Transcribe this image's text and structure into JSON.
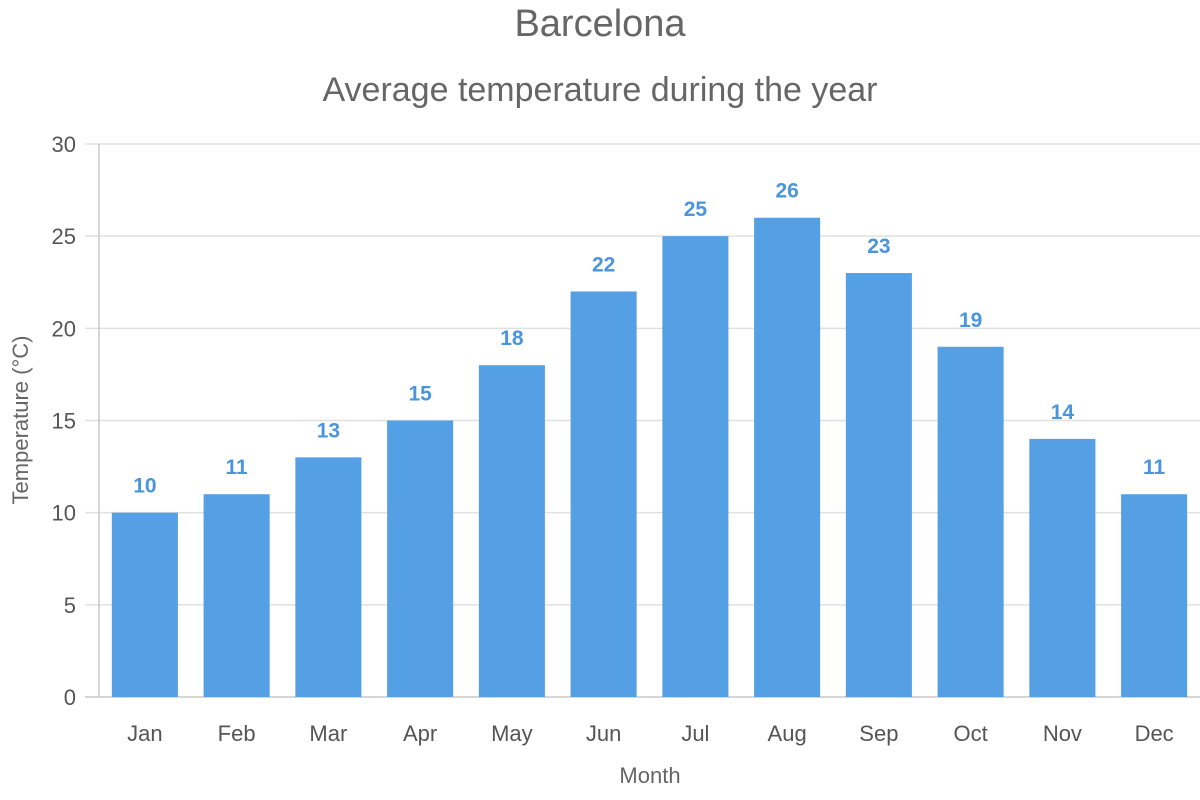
{
  "chart_data": {
    "type": "bar",
    "title": "Barcelona",
    "subtitle": "Average temperature during the year",
    "xlabel": "Month",
    "ylabel": "Temperature (°C)",
    "categories": [
      "Jan",
      "Feb",
      "Mar",
      "Apr",
      "May",
      "Jun",
      "Jul",
      "Aug",
      "Sep",
      "Oct",
      "Nov",
      "Dec"
    ],
    "series": [
      {
        "values": [
          10,
          11,
          13,
          15,
          18,
          22,
          25,
          26,
          23,
          19,
          14,
          11
        ]
      }
    ],
    "ylim": [
      0,
      30
    ],
    "yticks": [
      0,
      5,
      10,
      15,
      20,
      25,
      30
    ],
    "grid": true,
    "data_labels": true,
    "colors": {
      "bar": "#55a0e4",
      "data_label": "#4a95dd",
      "text": "#666666",
      "grid": "#e0e0e0"
    }
  }
}
